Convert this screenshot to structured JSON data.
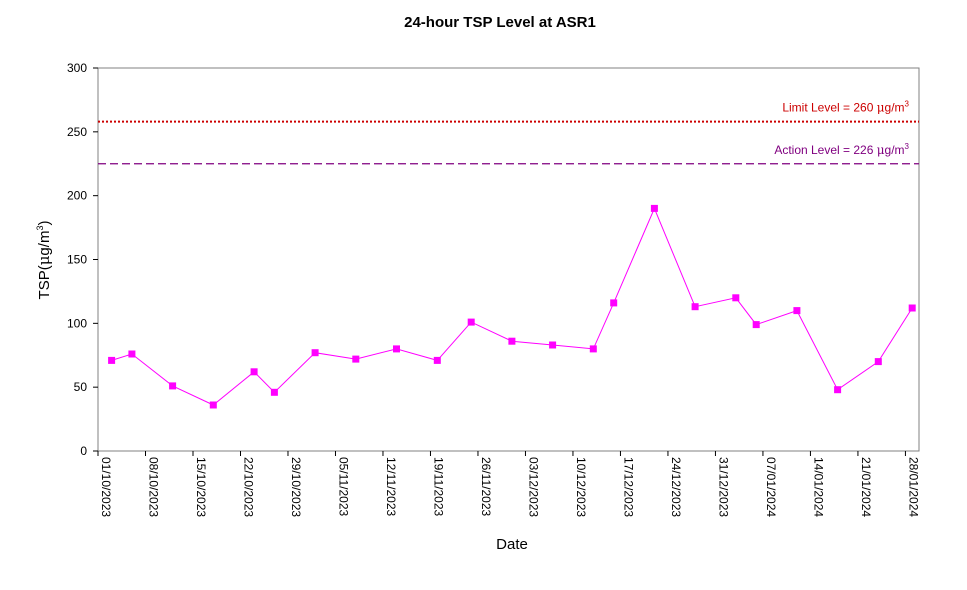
{
  "chart_data": {
    "type": "line",
    "title": "24-hour TSP Level at ASR1",
    "xlabel": "Date",
    "ylabel": "TSP(μg/m3)",
    "ylabel_main": "TSP(",
    "ylabel_mu": "μ",
    "ylabel_unit": "g/m",
    "ylabel_sup": "3",
    "ylabel_close": ")",
    "ylim": [
      0,
      300
    ],
    "y_ticks": [
      0,
      50,
      100,
      150,
      200,
      250,
      300
    ],
    "x_ticks": [
      "01/10/2023",
      "08/10/2023",
      "15/10/2023",
      "22/10/2023",
      "29/10/2023",
      "05/11/2023",
      "12/11/2023",
      "19/11/2023",
      "26/11/2023",
      "03/12/2023",
      "10/12/2023",
      "17/12/2023",
      "24/12/2023",
      "31/12/2023",
      "07/01/2024",
      "14/01/2024",
      "21/01/2024",
      "28/01/2024"
    ],
    "xlim": [
      "2023-10-01",
      "2024-01-30"
    ],
    "grid": false,
    "series": [
      {
        "color": "#ff00ff",
        "marker": "square",
        "points": [
          {
            "x": "2023-10-03",
            "y": 71
          },
          {
            "x": "2023-10-06",
            "y": 76
          },
          {
            "x": "2023-10-12",
            "y": 51
          },
          {
            "x": "2023-10-18",
            "y": 36
          },
          {
            "x": "2023-10-24",
            "y": 62
          },
          {
            "x": "2023-10-27",
            "y": 46
          },
          {
            "x": "2023-11-02",
            "y": 77
          },
          {
            "x": "2023-11-08",
            "y": 72
          },
          {
            "x": "2023-11-14",
            "y": 80
          },
          {
            "x": "2023-11-20",
            "y": 71
          },
          {
            "x": "2023-11-25",
            "y": 101
          },
          {
            "x": "2023-12-01",
            "y": 86
          },
          {
            "x": "2023-12-07",
            "y": 83
          },
          {
            "x": "2023-12-13",
            "y": 80
          },
          {
            "x": "2023-12-16",
            "y": 116
          },
          {
            "x": "2023-12-22",
            "y": 190
          },
          {
            "x": "2023-12-28",
            "y": 113
          },
          {
            "x": "2024-01-03",
            "y": 120
          },
          {
            "x": "2024-01-06",
            "y": 99
          },
          {
            "x": "2024-01-12",
            "y": 110
          },
          {
            "x": "2024-01-18",
            "y": 48
          },
          {
            "x": "2024-01-24",
            "y": 70
          },
          {
            "x": "2024-01-29",
            "y": 112
          }
        ]
      }
    ],
    "reference_lines": [
      {
        "label_prefix": "Limit Level  = 260 ",
        "label_mu": "μ",
        "label_unit": "g/m",
        "label_sup": "3",
        "y": 260,
        "y_drawn": 258,
        "color": "#cc0000",
        "style": "dotted"
      },
      {
        "label_prefix": "Action Level  = 226 ",
        "label_mu": "μ",
        "label_unit": "g/m",
        "label_sup": "3",
        "y": 226,
        "y_drawn": 225,
        "color": "#800080",
        "style": "dashed"
      }
    ]
  }
}
